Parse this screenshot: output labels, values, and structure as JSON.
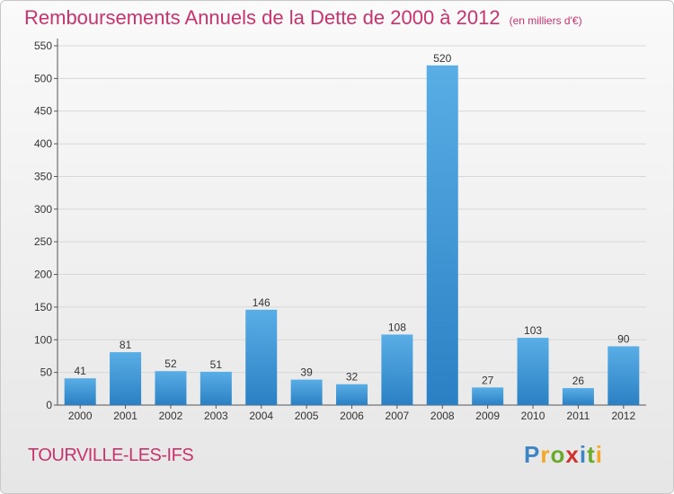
{
  "chart_data": {
    "type": "bar",
    "title": "Remboursements Annuels de la Dette de 2000 à 2012",
    "subtitle": "(en milliers d'€)",
    "categories": [
      "2000",
      "2001",
      "2002",
      "2003",
      "2004",
      "2005",
      "2006",
      "2007",
      "2008",
      "2009",
      "2010",
      "2011",
      "2012"
    ],
    "values": [
      41,
      81,
      52,
      51,
      146,
      39,
      32,
      108,
      520,
      27,
      103,
      26,
      90
    ],
    "yticks": [
      0,
      50,
      100,
      150,
      200,
      250,
      300,
      350,
      400,
      450,
      500,
      550
    ],
    "ylim": [
      0,
      550
    ],
    "grid": true,
    "bar_color_top": "#5aaee6",
    "bar_color_bottom": "#2a80c3"
  },
  "location": "TOURVILLE-LES-IFS",
  "logo": {
    "letters": [
      "P",
      "r",
      "o",
      "x",
      "i",
      "t",
      "i"
    ],
    "colors": [
      "#3d85c6",
      "#f5a623",
      "#6aaa2a",
      "#d0312d",
      "#3d85c6",
      "#6aaa2a",
      "#f5a623"
    ]
  },
  "colors": {
    "accent": "#c8336e"
  }
}
